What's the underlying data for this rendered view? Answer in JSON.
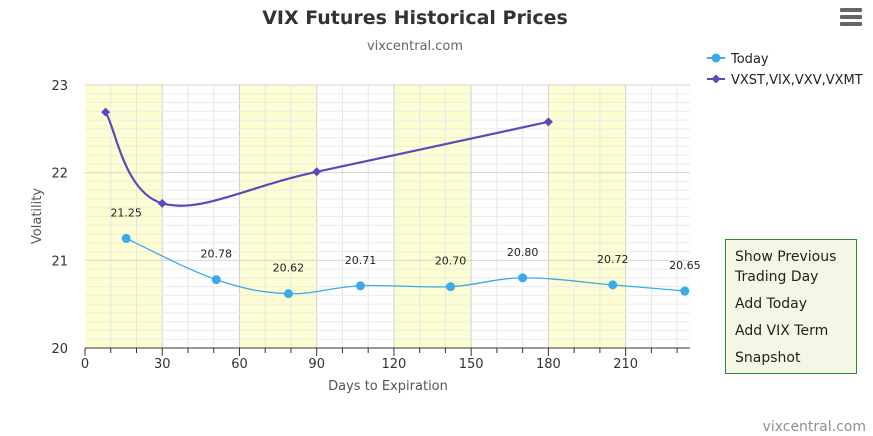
{
  "menu": {
    "items": [
      {
        "label": "Show Previous Trading Day"
      },
      {
        "label": "Add Today"
      },
      {
        "label": "Add VIX Term"
      },
      {
        "label": "Snapshot"
      }
    ]
  },
  "chart_data": {
    "type": "line",
    "title": "VIX Futures Historical Prices",
    "subtitle": "vixcentral.com",
    "credit": "vixcentral.com",
    "xlabel": "Days to Expiration",
    "ylabel": "Volatility",
    "xlim": [
      0,
      235
    ],
    "ylim": [
      20,
      23
    ],
    "x_ticks": [
      0,
      30,
      60,
      90,
      120,
      150,
      180,
      210
    ],
    "y_ticks": [
      20,
      21,
      22,
      23
    ],
    "grid": true,
    "bands": [
      [
        0,
        30
      ],
      [
        60,
        90
      ],
      [
        120,
        150
      ],
      [
        180,
        210
      ]
    ],
    "legend_position": "top-right",
    "series": [
      {
        "name": "Today",
        "color": "#3aaae8",
        "marker": "circle",
        "x": [
          16,
          51,
          79,
          107,
          142,
          170,
          205,
          233
        ],
        "y": [
          21.25,
          20.78,
          20.62,
          20.71,
          20.7,
          20.8,
          20.72,
          20.65
        ],
        "labels": [
          "21.25",
          "20.78",
          "20.62",
          "20.71",
          "20.70",
          "20.80",
          "20.72",
          "20.65"
        ]
      },
      {
        "name": "VXST,VIX,VXV,VXMT",
        "color": "#5b4ab8",
        "marker": "diamond",
        "x": [
          8,
          30,
          90,
          180
        ],
        "y": [
          22.69,
          21.65,
          22.01,
          22.58
        ]
      }
    ]
  }
}
